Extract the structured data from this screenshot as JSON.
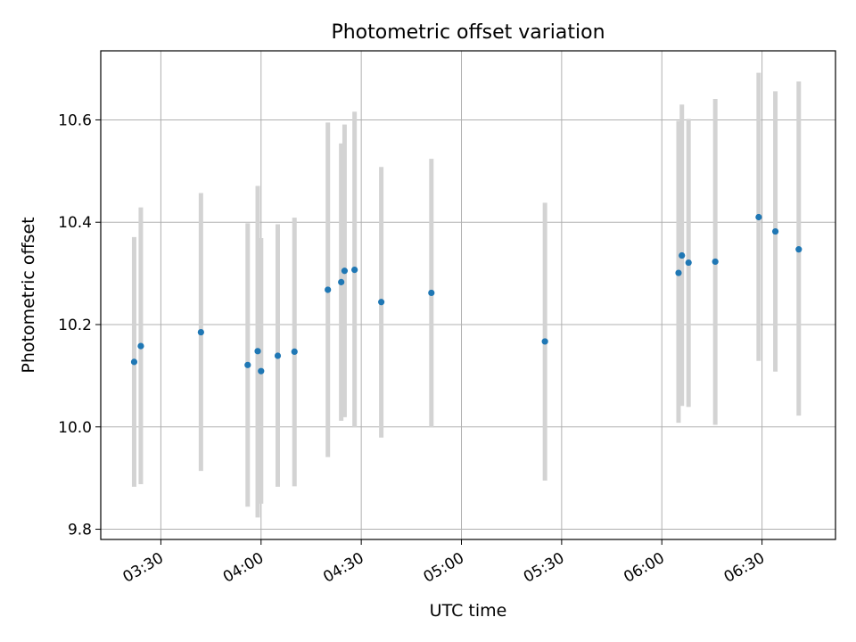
{
  "chart_data": {
    "type": "scatter",
    "title": "Photometric offset variation",
    "xlabel": "UTC time",
    "ylabel": "Photometric offset",
    "x_unit": "HH:MM (UTC)",
    "xlim": [
      "03:12",
      "06:52"
    ],
    "ylim": [
      9.78,
      10.735
    ],
    "x_ticks": [
      "03:30",
      "04:00",
      "04:30",
      "05:00",
      "05:30",
      "06:00",
      "06:30"
    ],
    "y_ticks": [
      9.8,
      10.0,
      10.2,
      10.4,
      10.6
    ],
    "y_tick_labels": [
      "9.8",
      "10.0",
      "10.2",
      "10.4",
      "10.6"
    ],
    "grid": true,
    "point_color": "#1f77b4",
    "errorbar_color": "#d3d3d3",
    "points": [
      {
        "x": "03:22",
        "y": 10.127,
        "ylo": 9.883,
        "yhi": 10.371
      },
      {
        "x": "03:24",
        "y": 10.158,
        "ylo": 9.888,
        "yhi": 10.429
      },
      {
        "x": "03:42",
        "y": 10.185,
        "ylo": 9.914,
        "yhi": 10.457
      },
      {
        "x": "03:56",
        "y": 10.121,
        "ylo": 9.844,
        "yhi": 10.398
      },
      {
        "x": "03:59",
        "y": 10.148,
        "ylo": 9.823,
        "yhi": 10.471
      },
      {
        "x": "04:00",
        "y": 10.109,
        "ylo": 9.85,
        "yhi": 10.369
      },
      {
        "x": "04:05",
        "y": 10.139,
        "ylo": 9.883,
        "yhi": 10.396
      },
      {
        "x": "04:10",
        "y": 10.147,
        "ylo": 9.884,
        "yhi": 10.409
      },
      {
        "x": "04:20",
        "y": 10.268,
        "ylo": 9.941,
        "yhi": 10.595
      },
      {
        "x": "04:24",
        "y": 10.283,
        "ylo": 10.012,
        "yhi": 10.554
      },
      {
        "x": "04:25",
        "y": 10.305,
        "ylo": 10.019,
        "yhi": 10.591
      },
      {
        "x": "04:28",
        "y": 10.307,
        "ylo": 9.999,
        "yhi": 10.616
      },
      {
        "x": "04:36",
        "y": 10.244,
        "ylo": 9.979,
        "yhi": 10.508
      },
      {
        "x": "04:51",
        "y": 10.262,
        "ylo": 9.999,
        "yhi": 10.524
      },
      {
        "x": "05:25",
        "y": 10.167,
        "ylo": 9.895,
        "yhi": 10.438
      },
      {
        "x": "06:05",
        "y": 10.301,
        "ylo": 10.008,
        "yhi": 10.598
      },
      {
        "x": "06:06",
        "y": 10.335,
        "ylo": 10.041,
        "yhi": 10.63
      },
      {
        "x": "06:08",
        "y": 10.321,
        "ylo": 10.039,
        "yhi": 10.602
      },
      {
        "x": "06:16",
        "y": 10.323,
        "ylo": 10.004,
        "yhi": 10.641
      },
      {
        "x": "06:29",
        "y": 10.41,
        "ylo": 10.129,
        "yhi": 10.692
      },
      {
        "x": "06:34",
        "y": 10.382,
        "ylo": 10.108,
        "yhi": 10.656
      },
      {
        "x": "06:41",
        "y": 10.347,
        "ylo": 10.022,
        "yhi": 10.675
      }
    ]
  }
}
